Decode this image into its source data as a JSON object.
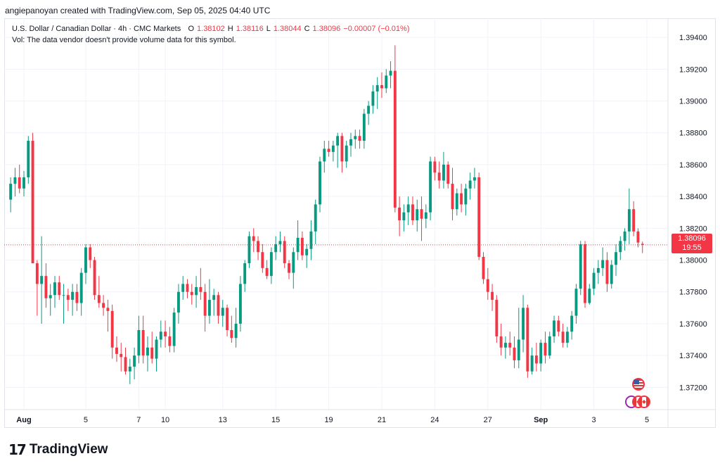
{
  "attribution": "angiepanoyan created with TradingView.com, Sep 05, 2025 04:40 UTC",
  "legend": {
    "symbol": "U.S. Dollar / Canadian Dollar · 4h · CMC Markets",
    "open_label": "O",
    "open": "1.38102",
    "high_label": "H",
    "high": "1.38116",
    "low_label": "L",
    "low": "1.38044",
    "close_label": "C",
    "close": "1.38096",
    "change": "−0.00007 (−0.01%)",
    "volume_note": "Vol: The data vendor doesn't provide volume data for this symbol."
  },
  "price_tag": {
    "price": "1.38096",
    "countdown": "19:55"
  },
  "brand": {
    "mark": "17",
    "name": "TradingView"
  },
  "colors": {
    "up": "#089981",
    "down": "#f23645",
    "grid": "#f0f3fa",
    "text": "#131722"
  },
  "event_icons": [
    "us-flag-icon",
    "canada-flag-icon"
  ],
  "chart_data": {
    "type": "candlestick",
    "title": "U.S. Dollar / Canadian Dollar · 4h · CMC Markets",
    "ylim": [
      1.3706,
      1.3952
    ],
    "yticks": [
      "1.39400",
      "1.39200",
      "1.39000",
      "1.38800",
      "1.38600",
      "1.38400",
      "1.38200",
      "1.38000",
      "1.37800",
      "1.37600",
      "1.37400",
      "1.37200"
    ],
    "yticks_values": [
      1.394,
      1.392,
      1.39,
      1.388,
      1.386,
      1.384,
      1.382,
      1.38,
      1.378,
      1.376,
      1.374,
      1.372
    ],
    "xticks": [
      {
        "label": "Aug",
        "index": 3,
        "bold": true
      },
      {
        "label": "5",
        "index": 17
      },
      {
        "label": "7",
        "index": 29
      },
      {
        "label": "10",
        "index": 35
      },
      {
        "label": "13",
        "index": 48
      },
      {
        "label": "15",
        "index": 60
      },
      {
        "label": "19",
        "index": 72
      },
      {
        "label": "21",
        "index": 84
      },
      {
        "label": "24",
        "index": 96
      },
      {
        "label": "27",
        "index": 108
      },
      {
        "label": "Sep",
        "index": 120,
        "bold": true
      },
      {
        "label": "3",
        "index": 132
      },
      {
        "label": "5",
        "index": 144
      }
    ],
    "last_price": 1.38096,
    "candles": [
      {
        "o": 1.3838,
        "h": 1.3852,
        "l": 1.383,
        "c": 1.3848
      },
      {
        "o": 1.3848,
        "h": 1.3858,
        "l": 1.384,
        "c": 1.3852
      },
      {
        "o": 1.3852,
        "h": 1.386,
        "l": 1.3842,
        "c": 1.3845
      },
      {
        "o": 1.3845,
        "h": 1.3856,
        "l": 1.384,
        "c": 1.3852
      },
      {
        "o": 1.3852,
        "h": 1.3878,
        "l": 1.3848,
        "c": 1.3875
      },
      {
        "o": 1.3875,
        "h": 1.388,
        "l": 1.3798,
        "c": 1.3798
      },
      {
        "o": 1.3798,
        "h": 1.38,
        "l": 1.3765,
        "c": 1.3785
      },
      {
        "o": 1.3785,
        "h": 1.3815,
        "l": 1.376,
        "c": 1.379
      },
      {
        "o": 1.379,
        "h": 1.3798,
        "l": 1.377,
        "c": 1.3776
      },
      {
        "o": 1.3776,
        "h": 1.3785,
        "l": 1.3765,
        "c": 1.3778
      },
      {
        "o": 1.3778,
        "h": 1.379,
        "l": 1.377,
        "c": 1.3786
      },
      {
        "o": 1.3786,
        "h": 1.379,
        "l": 1.3775,
        "c": 1.3778
      },
      {
        "o": 1.3778,
        "h": 1.3785,
        "l": 1.376,
        "c": 1.3778
      },
      {
        "o": 1.3778,
        "h": 1.3782,
        "l": 1.3768,
        "c": 1.3775
      },
      {
        "o": 1.3775,
        "h": 1.3785,
        "l": 1.3765,
        "c": 1.378
      },
      {
        "o": 1.378,
        "h": 1.3785,
        "l": 1.3768,
        "c": 1.3773
      },
      {
        "o": 1.3773,
        "h": 1.3795,
        "l": 1.3765,
        "c": 1.3792
      },
      {
        "o": 1.3792,
        "h": 1.381,
        "l": 1.3785,
        "c": 1.3808
      },
      {
        "o": 1.3808,
        "h": 1.381,
        "l": 1.3795,
        "c": 1.38
      },
      {
        "o": 1.38,
        "h": 1.3802,
        "l": 1.3775,
        "c": 1.3778
      },
      {
        "o": 1.3778,
        "h": 1.379,
        "l": 1.377,
        "c": 1.3773
      },
      {
        "o": 1.3773,
        "h": 1.3778,
        "l": 1.3765,
        "c": 1.377
      },
      {
        "o": 1.377,
        "h": 1.3775,
        "l": 1.3755,
        "c": 1.3768
      },
      {
        "o": 1.3768,
        "h": 1.3772,
        "l": 1.3738,
        "c": 1.3745
      },
      {
        "o": 1.3745,
        "h": 1.3752,
        "l": 1.3736,
        "c": 1.3741
      },
      {
        "o": 1.3741,
        "h": 1.3748,
        "l": 1.373,
        "c": 1.3739
      },
      {
        "o": 1.3739,
        "h": 1.3745,
        "l": 1.3728,
        "c": 1.373
      },
      {
        "o": 1.373,
        "h": 1.3738,
        "l": 1.3722,
        "c": 1.3733
      },
      {
        "o": 1.3733,
        "h": 1.3745,
        "l": 1.3725,
        "c": 1.374
      },
      {
        "o": 1.374,
        "h": 1.3765,
        "l": 1.3735,
        "c": 1.3756
      },
      {
        "o": 1.3756,
        "h": 1.3765,
        "l": 1.3735,
        "c": 1.374
      },
      {
        "o": 1.374,
        "h": 1.3752,
        "l": 1.373,
        "c": 1.3745
      },
      {
        "o": 1.3745,
        "h": 1.3755,
        "l": 1.3735,
        "c": 1.3738
      },
      {
        "o": 1.3738,
        "h": 1.3752,
        "l": 1.373,
        "c": 1.375
      },
      {
        "o": 1.375,
        "h": 1.3762,
        "l": 1.3745,
        "c": 1.3755
      },
      {
        "o": 1.3755,
        "h": 1.3762,
        "l": 1.3745,
        "c": 1.3752
      },
      {
        "o": 1.3752,
        "h": 1.3758,
        "l": 1.3742,
        "c": 1.3746
      },
      {
        "o": 1.3746,
        "h": 1.377,
        "l": 1.3742,
        "c": 1.3767
      },
      {
        "o": 1.3767,
        "h": 1.3785,
        "l": 1.376,
        "c": 1.378
      },
      {
        "o": 1.378,
        "h": 1.379,
        "l": 1.3775,
        "c": 1.3785
      },
      {
        "o": 1.3785,
        "h": 1.3788,
        "l": 1.3776,
        "c": 1.378
      },
      {
        "o": 1.378,
        "h": 1.3785,
        "l": 1.3772,
        "c": 1.3778
      },
      {
        "o": 1.3778,
        "h": 1.379,
        "l": 1.377,
        "c": 1.3783
      },
      {
        "o": 1.3783,
        "h": 1.3795,
        "l": 1.3775,
        "c": 1.378
      },
      {
        "o": 1.378,
        "h": 1.3785,
        "l": 1.3755,
        "c": 1.3765
      },
      {
        "o": 1.3765,
        "h": 1.3788,
        "l": 1.376,
        "c": 1.3775
      },
      {
        "o": 1.3775,
        "h": 1.3782,
        "l": 1.3765,
        "c": 1.3778
      },
      {
        "o": 1.3778,
        "h": 1.378,
        "l": 1.376,
        "c": 1.3765
      },
      {
        "o": 1.3765,
        "h": 1.3775,
        "l": 1.3758,
        "c": 1.377
      },
      {
        "o": 1.377,
        "h": 1.3772,
        "l": 1.3752,
        "c": 1.3756
      },
      {
        "o": 1.3756,
        "h": 1.3765,
        "l": 1.3748,
        "c": 1.3751
      },
      {
        "o": 1.3751,
        "h": 1.377,
        "l": 1.3745,
        "c": 1.376
      },
      {
        "o": 1.376,
        "h": 1.379,
        "l": 1.3755,
        "c": 1.3785
      },
      {
        "o": 1.3785,
        "h": 1.38,
        "l": 1.378,
        "c": 1.3798
      },
      {
        "o": 1.3798,
        "h": 1.3818,
        "l": 1.3795,
        "c": 1.3815
      },
      {
        "o": 1.3815,
        "h": 1.382,
        "l": 1.3805,
        "c": 1.3812
      },
      {
        "o": 1.3812,
        "h": 1.3815,
        "l": 1.38,
        "c": 1.3805
      },
      {
        "o": 1.3805,
        "h": 1.381,
        "l": 1.3792,
        "c": 1.3795
      },
      {
        "o": 1.3795,
        "h": 1.38,
        "l": 1.3788,
        "c": 1.379
      },
      {
        "o": 1.379,
        "h": 1.3808,
        "l": 1.3785,
        "c": 1.3805
      },
      {
        "o": 1.3805,
        "h": 1.3815,
        "l": 1.38,
        "c": 1.381
      },
      {
        "o": 1.381,
        "h": 1.3818,
        "l": 1.3805,
        "c": 1.3812
      },
      {
        "o": 1.3812,
        "h": 1.3815,
        "l": 1.3795,
        "c": 1.3798
      },
      {
        "o": 1.3798,
        "h": 1.38,
        "l": 1.3788,
        "c": 1.3792
      },
      {
        "o": 1.3792,
        "h": 1.3808,
        "l": 1.3782,
        "c": 1.3805
      },
      {
        "o": 1.3805,
        "h": 1.3825,
        "l": 1.38,
        "c": 1.3814
      },
      {
        "o": 1.3814,
        "h": 1.3818,
        "l": 1.38,
        "c": 1.3803
      },
      {
        "o": 1.3803,
        "h": 1.381,
        "l": 1.3795,
        "c": 1.3807
      },
      {
        "o": 1.3807,
        "h": 1.3825,
        "l": 1.38,
        "c": 1.3818
      },
      {
        "o": 1.3818,
        "h": 1.3838,
        "l": 1.381,
        "c": 1.3835
      },
      {
        "o": 1.3835,
        "h": 1.3865,
        "l": 1.383,
        "c": 1.3862
      },
      {
        "o": 1.3862,
        "h": 1.3875,
        "l": 1.3855,
        "c": 1.387
      },
      {
        "o": 1.387,
        "h": 1.3875,
        "l": 1.3865,
        "c": 1.3868
      },
      {
        "o": 1.3868,
        "h": 1.3875,
        "l": 1.3862,
        "c": 1.3872
      },
      {
        "o": 1.3872,
        "h": 1.388,
        "l": 1.3858,
        "c": 1.3878
      },
      {
        "o": 1.3878,
        "h": 1.388,
        "l": 1.3855,
        "c": 1.3862
      },
      {
        "o": 1.3862,
        "h": 1.3875,
        "l": 1.3858,
        "c": 1.3872
      },
      {
        "o": 1.3872,
        "h": 1.388,
        "l": 1.3865,
        "c": 1.3876
      },
      {
        "o": 1.3876,
        "h": 1.3882,
        "l": 1.387,
        "c": 1.3878
      },
      {
        "o": 1.3878,
        "h": 1.3882,
        "l": 1.387,
        "c": 1.3875
      },
      {
        "o": 1.3875,
        "h": 1.3895,
        "l": 1.387,
        "c": 1.3892
      },
      {
        "o": 1.3892,
        "h": 1.39,
        "l": 1.3885,
        "c": 1.3897
      },
      {
        "o": 1.3897,
        "h": 1.391,
        "l": 1.3892,
        "c": 1.3906
      },
      {
        "o": 1.3906,
        "h": 1.3915,
        "l": 1.3895,
        "c": 1.391
      },
      {
        "o": 1.391,
        "h": 1.3918,
        "l": 1.3902,
        "c": 1.3908
      },
      {
        "o": 1.3908,
        "h": 1.392,
        "l": 1.3905,
        "c": 1.3916
      },
      {
        "o": 1.3916,
        "h": 1.3925,
        "l": 1.3908,
        "c": 1.3919
      },
      {
        "o": 1.3919,
        "h": 1.3935,
        "l": 1.383,
        "c": 1.3833
      },
      {
        "o": 1.3833,
        "h": 1.384,
        "l": 1.3815,
        "c": 1.3825
      },
      {
        "o": 1.3825,
        "h": 1.3835,
        "l": 1.3818,
        "c": 1.383
      },
      {
        "o": 1.383,
        "h": 1.384,
        "l": 1.3822,
        "c": 1.3835
      },
      {
        "o": 1.3835,
        "h": 1.384,
        "l": 1.3822,
        "c": 1.3825
      },
      {
        "o": 1.3825,
        "h": 1.3838,
        "l": 1.3818,
        "c": 1.3832
      },
      {
        "o": 1.3832,
        "h": 1.384,
        "l": 1.3812,
        "c": 1.3826
      },
      {
        "o": 1.3826,
        "h": 1.3835,
        "l": 1.382,
        "c": 1.383
      },
      {
        "o": 1.383,
        "h": 1.3865,
        "l": 1.3825,
        "c": 1.3862
      },
      {
        "o": 1.3862,
        "h": 1.3865,
        "l": 1.385,
        "c": 1.3855
      },
      {
        "o": 1.3855,
        "h": 1.3862,
        "l": 1.3845,
        "c": 1.385
      },
      {
        "o": 1.385,
        "h": 1.3868,
        "l": 1.3845,
        "c": 1.386
      },
      {
        "o": 1.386,
        "h": 1.3862,
        "l": 1.3845,
        "c": 1.3848
      },
      {
        "o": 1.3848,
        "h": 1.3858,
        "l": 1.3825,
        "c": 1.3832
      },
      {
        "o": 1.3832,
        "h": 1.3845,
        "l": 1.3828,
        "c": 1.3842
      },
      {
        "o": 1.3842,
        "h": 1.3848,
        "l": 1.383,
        "c": 1.3835
      },
      {
        "o": 1.3835,
        "h": 1.3848,
        "l": 1.3828,
        "c": 1.3845
      },
      {
        "o": 1.3845,
        "h": 1.3855,
        "l": 1.3838,
        "c": 1.385
      },
      {
        "o": 1.385,
        "h": 1.3858,
        "l": 1.3845,
        "c": 1.3852
      },
      {
        "o": 1.3852,
        "h": 1.3855,
        "l": 1.38,
        "c": 1.3802
      },
      {
        "o": 1.3802,
        "h": 1.3805,
        "l": 1.3785,
        "c": 1.3788
      },
      {
        "o": 1.3788,
        "h": 1.3795,
        "l": 1.3775,
        "c": 1.378
      },
      {
        "o": 1.378,
        "h": 1.3785,
        "l": 1.3768,
        "c": 1.3775
      },
      {
        "o": 1.3775,
        "h": 1.3778,
        "l": 1.3748,
        "c": 1.3752
      },
      {
        "o": 1.3752,
        "h": 1.376,
        "l": 1.374,
        "c": 1.3745
      },
      {
        "o": 1.3745,
        "h": 1.3752,
        "l": 1.3738,
        "c": 1.3748
      },
      {
        "o": 1.3748,
        "h": 1.3755,
        "l": 1.374,
        "c": 1.3745
      },
      {
        "o": 1.3745,
        "h": 1.3752,
        "l": 1.3732,
        "c": 1.3737
      },
      {
        "o": 1.3737,
        "h": 1.377,
        "l": 1.3732,
        "c": 1.375
      },
      {
        "o": 1.375,
        "h": 1.3778,
        "l": 1.3742,
        "c": 1.377
      },
      {
        "o": 1.377,
        "h": 1.3772,
        "l": 1.3726,
        "c": 1.373
      },
      {
        "o": 1.373,
        "h": 1.3745,
        "l": 1.3728,
        "c": 1.374
      },
      {
        "o": 1.374,
        "h": 1.3748,
        "l": 1.373,
        "c": 1.3735
      },
      {
        "o": 1.3735,
        "h": 1.375,
        "l": 1.373,
        "c": 1.3748
      },
      {
        "o": 1.3748,
        "h": 1.3755,
        "l": 1.3735,
        "c": 1.374
      },
      {
        "o": 1.374,
        "h": 1.3755,
        "l": 1.3738,
        "c": 1.3752
      },
      {
        "o": 1.3752,
        "h": 1.3765,
        "l": 1.3748,
        "c": 1.3762
      },
      {
        "o": 1.3762,
        "h": 1.3765,
        "l": 1.3752,
        "c": 1.3755
      },
      {
        "o": 1.3755,
        "h": 1.376,
        "l": 1.3745,
        "c": 1.3748
      },
      {
        "o": 1.3748,
        "h": 1.3758,
        "l": 1.3745,
        "c": 1.3755
      },
      {
        "o": 1.3755,
        "h": 1.3768,
        "l": 1.375,
        "c": 1.3765
      },
      {
        "o": 1.3765,
        "h": 1.3785,
        "l": 1.376,
        "c": 1.3782
      },
      {
        "o": 1.3782,
        "h": 1.3812,
        "l": 1.3778,
        "c": 1.381
      },
      {
        "o": 1.381,
        "h": 1.3812,
        "l": 1.377,
        "c": 1.3773
      },
      {
        "o": 1.3773,
        "h": 1.3785,
        "l": 1.3772,
        "c": 1.3782
      },
      {
        "o": 1.3782,
        "h": 1.3795,
        "l": 1.3778,
        "c": 1.3792
      },
      {
        "o": 1.3792,
        "h": 1.38,
        "l": 1.3785,
        "c": 1.3795
      },
      {
        "o": 1.3795,
        "h": 1.3808,
        "l": 1.379,
        "c": 1.38
      },
      {
        "o": 1.38,
        "h": 1.3805,
        "l": 1.378,
        "c": 1.3785
      },
      {
        "o": 1.3785,
        "h": 1.38,
        "l": 1.3782,
        "c": 1.3797
      },
      {
        "o": 1.3797,
        "h": 1.381,
        "l": 1.379,
        "c": 1.3805
      },
      {
        "o": 1.3805,
        "h": 1.3815,
        "l": 1.38,
        "c": 1.3812
      },
      {
        "o": 1.3812,
        "h": 1.382,
        "l": 1.3806,
        "c": 1.3818
      },
      {
        "o": 1.3818,
        "h": 1.3845,
        "l": 1.381,
        "c": 1.3832
      },
      {
        "o": 1.3832,
        "h": 1.3837,
        "l": 1.3815,
        "c": 1.3818
      },
      {
        "o": 1.3818,
        "h": 1.382,
        "l": 1.3808,
        "c": 1.3811
      },
      {
        "o": 1.38102,
        "h": 1.38116,
        "l": 1.38044,
        "c": 1.38096
      }
    ]
  }
}
